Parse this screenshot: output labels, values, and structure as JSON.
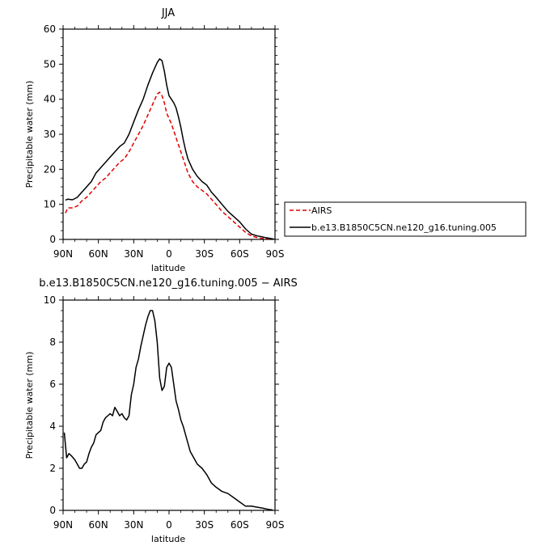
{
  "chart_data": [
    {
      "type": "line",
      "title": "JJA",
      "xlabel": "latitude",
      "ylabel": "Precipitable water (mm)",
      "xlim": [
        -90,
        90
      ],
      "ylim": [
        0,
        60
      ],
      "xticks": [
        -90,
        -60,
        -30,
        0,
        30,
        60,
        90
      ],
      "xtick_labels": [
        "90N",
        "60N",
        "30N",
        "0",
        "30S",
        "60S",
        "90S"
      ],
      "yticks": [
        0,
        10,
        20,
        30,
        40,
        50,
        60
      ],
      "legend": {
        "placement": "right",
        "entries": [
          "AIRS",
          "b.e13.B1850C5CN.ne120_g16.tuning.005"
        ]
      },
      "series": [
        {
          "name": "AIRS",
          "color": "#e00000",
          "style": "dashed",
          "x": [
            -88,
            -86,
            -82,
            -78,
            -74,
            -70,
            -66,
            -62,
            -58,
            -54,
            -50,
            -46,
            -42,
            -38,
            -34,
            -30,
            -26,
            -22,
            -18,
            -14,
            -12,
            -10,
            -8,
            -6,
            -4,
            -2,
            0,
            2,
            4,
            6,
            8,
            10,
            12,
            14,
            16,
            20,
            24,
            28,
            32,
            36,
            40,
            45,
            50,
            55,
            60,
            65,
            70,
            75,
            78,
            82,
            86,
            89
          ],
          "values": [
            7.5,
            9,
            9,
            9.5,
            11,
            12,
            13.5,
            15,
            16.5,
            17.5,
            19,
            20.5,
            22,
            23,
            25,
            27.5,
            30,
            32.5,
            35.5,
            38.5,
            40,
            41.5,
            42,
            41,
            39,
            36,
            34.5,
            33,
            31,
            29,
            27,
            25,
            23,
            21,
            19,
            16.5,
            15,
            14,
            13,
            11.5,
            10,
            8,
            6.5,
            5,
            3.5,
            2,
            1,
            0.5,
            0.3,
            0.3,
            0.2,
            0.1
          ]
        },
        {
          "name": "b.e13.B1850C5CN.ne120_g16.tuning.005",
          "color": "#000000",
          "style": "solid",
          "x": [
            -88,
            -86,
            -82,
            -78,
            -74,
            -70,
            -66,
            -62,
            -58,
            -54,
            -50,
            -46,
            -42,
            -38,
            -34,
            -30,
            -26,
            -22,
            -18,
            -14,
            -12,
            -10,
            -8,
            -6,
            -4,
            -2,
            0,
            2,
            4,
            6,
            8,
            10,
            12,
            14,
            16,
            20,
            24,
            28,
            32,
            36,
            40,
            45,
            50,
            55,
            60,
            65,
            70,
            75,
            78,
            82,
            86,
            89
          ],
          "values": [
            11.2,
            11.5,
            11.3,
            12,
            13.5,
            15,
            16.5,
            19,
            20.5,
            22,
            23.5,
            25,
            26.5,
            27.5,
            30,
            33.5,
            37,
            40,
            44,
            47.5,
            49,
            50.5,
            51.5,
            51,
            48,
            44,
            41,
            40,
            39,
            37.5,
            35,
            32,
            28.5,
            25.5,
            23,
            20,
            18,
            16.5,
            15.5,
            13.5,
            12,
            10,
            8,
            6.5,
            5,
            3,
            1.5,
            1,
            0.8,
            0.5,
            0.3,
            0.1
          ]
        }
      ]
    },
    {
      "type": "line",
      "title": "b.e13.B1850C5CN.ne120_g16.tuning.005 − AIRS",
      "xlabel": "latitude",
      "ylabel": "Precipitable water (mm)",
      "xlim": [
        -90,
        90
      ],
      "ylim": [
        0,
        10
      ],
      "xticks": [
        -90,
        -60,
        -30,
        0,
        30,
        60,
        90
      ],
      "xtick_labels": [
        "90N",
        "60N",
        "30N",
        "0",
        "30S",
        "60S",
        "90S"
      ],
      "yticks": [
        0,
        2,
        4,
        6,
        8,
        10
      ],
      "series": [
        {
          "color": "#000000",
          "style": "solid",
          "x": [
            -89,
            -87,
            -85,
            -83,
            -80,
            -78,
            -76,
            -74,
            -72,
            -70,
            -68,
            -66,
            -64,
            -62,
            -60,
            -58,
            -56,
            -54,
            -52,
            -50,
            -48,
            -46,
            -44,
            -42,
            -40,
            -38,
            -36,
            -34,
            -32,
            -30,
            -28,
            -26,
            -24,
            -22,
            -20,
            -18,
            -16,
            -14,
            -12,
            -10,
            -8,
            -6,
            -4,
            -2,
            0,
            2,
            4,
            6,
            8,
            10,
            12,
            14,
            16,
            18,
            20,
            24,
            28,
            32,
            36,
            40,
            45,
            50,
            55,
            60,
            65,
            70,
            75,
            80,
            84,
            88
          ],
          "values": [
            3.7,
            2.5,
            2.7,
            2.6,
            2.4,
            2.2,
            2.0,
            2.0,
            2.2,
            2.3,
            2.7,
            3.0,
            3.2,
            3.6,
            3.7,
            3.8,
            4.2,
            4.4,
            4.5,
            4.6,
            4.5,
            4.9,
            4.7,
            4.5,
            4.6,
            4.4,
            4.3,
            4.5,
            5.5,
            6.0,
            6.8,
            7.2,
            7.8,
            8.3,
            8.8,
            9.2,
            9.5,
            9.5,
            9.0,
            8.0,
            6.3,
            5.7,
            5.9,
            6.8,
            7.0,
            6.8,
            6.0,
            5.2,
            4.8,
            4.3,
            4.0,
            3.6,
            3.2,
            2.8,
            2.6,
            2.2,
            2.0,
            1.7,
            1.3,
            1.1,
            0.9,
            0.8,
            0.6,
            0.4,
            0.2,
            0.2,
            0.15,
            0.1,
            0.05,
            0.02
          ]
        }
      ]
    }
  ]
}
